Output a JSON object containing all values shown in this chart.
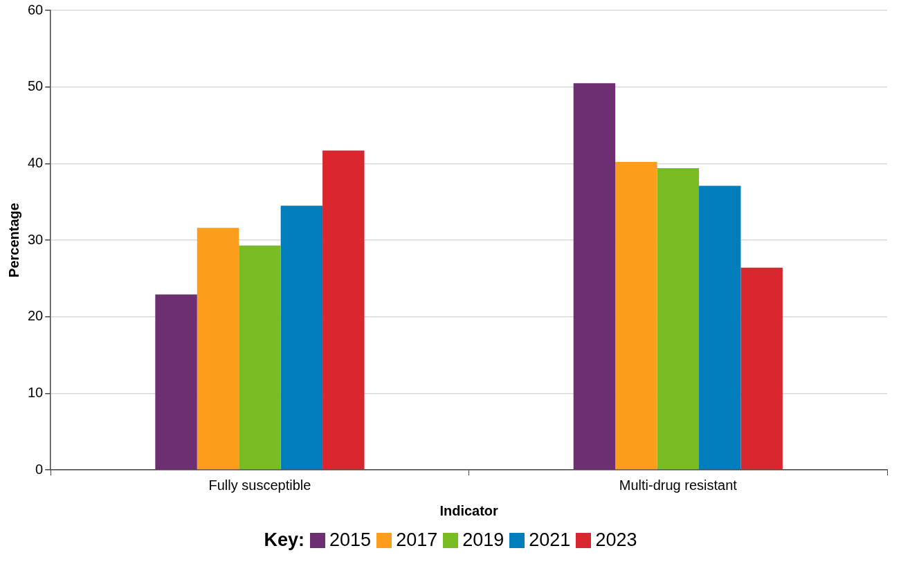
{
  "chart_data": {
    "type": "bar",
    "xlabel": "Indicator",
    "ylabel": "Percentage",
    "legend_title": "Key:",
    "categories": [
      "Fully susceptible",
      "Multi-drug resistant"
    ],
    "series": [
      {
        "name": "2015",
        "color": "#6d2f72",
        "values": [
          22.9,
          50.5
        ]
      },
      {
        "name": "2017",
        "color": "#fc9d1c",
        "values": [
          31.6,
          40.2
        ]
      },
      {
        "name": "2019",
        "color": "#78bb22",
        "values": [
          29.3,
          39.4
        ]
      },
      {
        "name": "2021",
        "color": "#007dbb",
        "values": [
          34.5,
          37.1
        ]
      },
      {
        "name": "2023",
        "color": "#d9262f",
        "values": [
          41.7,
          26.4
        ]
      }
    ],
    "ylim": [
      0,
      60
    ],
    "yticks": [
      0,
      10,
      20,
      30,
      40,
      50,
      60
    ],
    "grid": "y",
    "legend": "bottom"
  }
}
